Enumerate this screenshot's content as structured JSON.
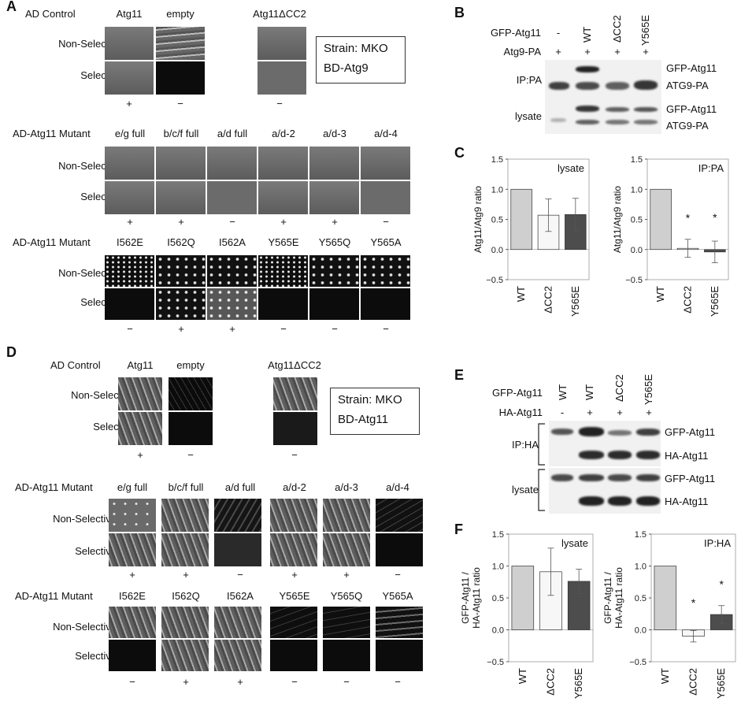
{
  "panel_letters": {
    "A": "A",
    "B": "B",
    "C": "C",
    "D": "D",
    "E": "E",
    "F": "F"
  },
  "panelA": {
    "control_header": [
      "AD Control",
      "Atg11",
      "empty",
      "Atg11ΔCC2"
    ],
    "row_labels": [
      "Non-Selective",
      "Selective"
    ],
    "control_results": [
      "+",
      "−",
      "−"
    ],
    "strain_box": [
      "Strain: MKO",
      "BD-Atg9"
    ],
    "mutant_row1_header": "AD-Atg11 Mutant",
    "mutant_row1": [
      "e/g full",
      "b/c/f full",
      "a/d full",
      "a/d-2",
      "a/d-3",
      "a/d-4"
    ],
    "mutant_row1_results": [
      "+",
      "+",
      "−",
      "+",
      "+",
      "−"
    ],
    "mutant_row2_header": "AD-Atg11 Mutant",
    "mutant_row2": [
      "I562E",
      "I562Q",
      "I562A",
      "Y565E",
      "Y565Q",
      "Y565A"
    ],
    "mutant_row2_results": [
      "−",
      "+",
      "+",
      "−",
      "−",
      "−"
    ]
  },
  "panelB": {
    "row1_label": "GFP-Atg11",
    "row1_values": [
      "-",
      "WT",
      "ΔCC2",
      "Y565E"
    ],
    "row2_label": "Atg9-PA",
    "row2_values": [
      "+",
      "+",
      "+",
      "+"
    ],
    "ip_label": "IP:PA",
    "lysate_label": "lysate",
    "band_labels": [
      "GFP-Atg11",
      "ATG9-PA",
      "GFP-Atg11",
      "ATG9-PA"
    ]
  },
  "panelD": {
    "control_header": [
      "AD Control",
      "Atg11",
      "empty",
      "Atg11ΔCC2"
    ],
    "row_labels": [
      "Non-Selective",
      "Selective"
    ],
    "control_results": [
      "+",
      "−",
      "−"
    ],
    "strain_box": [
      "Strain: MKO",
      "BD-Atg11"
    ],
    "mutant_row1_header": "AD-Atg11 Mutant",
    "mutant_row1": [
      "e/g full",
      "b/c/f full",
      "a/d full",
      "a/d-2",
      "a/d-3",
      "a/d-4"
    ],
    "mutant_row1_results": [
      "+",
      "+",
      "−",
      "+",
      "+",
      "−"
    ],
    "mutant_row2_header": "AD-Atg11 Mutant",
    "mutant_row2": [
      "I562E",
      "I562Q",
      "I562A",
      "Y565E",
      "Y565Q",
      "Y565A"
    ],
    "mutant_row2_results": [
      "−",
      "+",
      "+",
      "−",
      "−",
      "−"
    ]
  },
  "panelE": {
    "row1_label": "GFP-Atg11",
    "row1_values": [
      "WT",
      "WT",
      "ΔCC2",
      "Y565E"
    ],
    "row2_label": "HA-Atg11",
    "row2_values": [
      "-",
      "+",
      "+",
      "+"
    ],
    "ip_label": "IP:HA",
    "lysate_label": "lysate",
    "band_labels": [
      "GFP-Atg11",
      "HA-Atg11",
      "GFP-Atg11",
      "HA-Atg11"
    ]
  },
  "colors": {
    "WT": "#cfcfcf",
    "dCC2": "#f7f7f7",
    "Y565E": "#4d4d4d",
    "axis": "#333333"
  },
  "chart_data": [
    {
      "id": "C-lysate",
      "type": "bar",
      "title": "lysate",
      "ylabel": "Atg11/Atg9 ratio",
      "ylim": [
        -0.5,
        1.5
      ],
      "yticks": [
        "1.5",
        "1.0",
        "0.5",
        "0.0",
        "−0.5"
      ],
      "categories": [
        "WT",
        "ΔCC2",
        "Y565E"
      ],
      "values": [
        1.0,
        0.57,
        0.58
      ],
      "errors": [
        0.0,
        0.27,
        0.27
      ],
      "significance": [
        "",
        "",
        ""
      ]
    },
    {
      "id": "C-IP",
      "type": "bar",
      "title": "IP:PA",
      "ylabel": "Atg11/Atg9 ratio",
      "ylim": [
        -0.5,
        1.5
      ],
      "yticks": [
        "1.5",
        "1.0",
        "0.5",
        "0.0",
        "−0.5"
      ],
      "categories": [
        "WT",
        "ΔCC2",
        "Y565E"
      ],
      "values": [
        1.0,
        0.02,
        -0.04
      ],
      "errors": [
        0.0,
        0.15,
        0.18
      ],
      "significance": [
        "",
        "*",
        "*"
      ]
    },
    {
      "id": "F-lysate",
      "type": "bar",
      "title": "lysate",
      "ylabel": "GFP-Atg11 / HA-Atg11 ratio",
      "ylabel_lines": [
        "GFP-Atg11 /",
        "HA-Atg11 ratio"
      ],
      "ylim": [
        -0.5,
        1.5
      ],
      "yticks": [
        "1.5",
        "1.0",
        "0.5",
        "0.0",
        "−0.5"
      ],
      "categories": [
        "WT",
        "ΔCC2",
        "Y565E"
      ],
      "values": [
        1.0,
        0.91,
        0.76
      ],
      "errors": [
        0.0,
        0.37,
        0.19
      ],
      "significance": [
        "",
        "",
        ""
      ]
    },
    {
      "id": "F-IP",
      "type": "bar",
      "title": "IP:HA",
      "ylabel": "GFP-Atg11 / HA-Atg11 ratio",
      "ylabel_lines": [
        "GFP-Atg11 /",
        "HA-Atg11 ratio"
      ],
      "ylim": [
        -0.5,
        1.5
      ],
      "yticks": [
        "1.5",
        "1.0",
        "0.5",
        "0.0",
        "−0.5"
      ],
      "categories": [
        "WT",
        "ΔCC2",
        "Y565E"
      ],
      "values": [
        1.0,
        -0.1,
        0.24
      ],
      "errors": [
        0.0,
        0.09,
        0.14
      ],
      "significance": [
        "",
        "*",
        "*"
      ]
    }
  ]
}
